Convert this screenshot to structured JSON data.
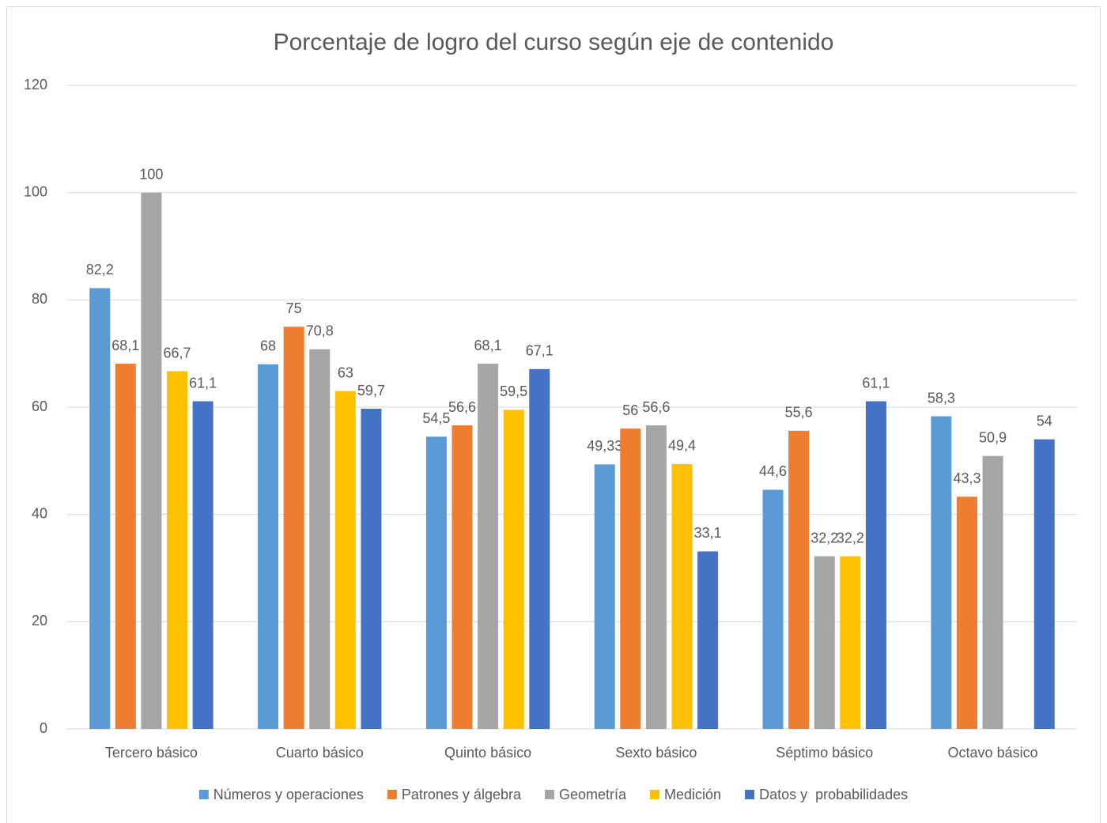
{
  "chart_data": {
    "type": "bar",
    "title": "Porcentaje de logro del curso según eje de contenido",
    "categories": [
      "Tercero básico",
      "Cuarto básico",
      "Quinto básico",
      "Sexto básico",
      "Séptimo básico",
      "Octavo básico"
    ],
    "series": [
      {
        "name": "Números y operaciones",
        "color": "#5b9bd5",
        "values": [
          82.2,
          68,
          54.5,
          49.33,
          44.6,
          58.3
        ],
        "value_labels": [
          "82,2",
          "68",
          "54,5",
          "49,33",
          "44,6",
          "58,3"
        ]
      },
      {
        "name": "Patrones y álgebra",
        "color": "#ed7d31",
        "values": [
          68.1,
          75,
          56.6,
          56,
          55.6,
          43.3
        ],
        "value_labels": [
          "68,1",
          "75",
          "56,6",
          "56",
          "55,6",
          "43,3"
        ]
      },
      {
        "name": "Geometría",
        "color": "#a5a5a5",
        "values": [
          100,
          70.8,
          68.1,
          56.6,
          32.2,
          50.9
        ],
        "value_labels": [
          "100",
          "70,8",
          "68,1",
          "56,6",
          "32,2",
          "50,9"
        ]
      },
      {
        "name": "Medición",
        "color": "#ffc000",
        "values": [
          66.7,
          63,
          59.5,
          49.4,
          32.2,
          null
        ],
        "value_labels": [
          "66,7",
          "63",
          "59,5",
          "49,4",
          "32,2",
          null
        ]
      },
      {
        "name": "Datos y  probabilidades",
        "color": "#4472c4",
        "values": [
          61.1,
          59.7,
          67.1,
          33.1,
          61.1,
          54
        ],
        "value_labels": [
          "61,1",
          "59,7",
          "67,1",
          "33,1",
          "61,1",
          "54"
        ]
      }
    ],
    "ylim": [
      0,
      120
    ],
    "yticks": [
      0,
      20,
      40,
      60,
      80,
      100,
      120
    ],
    "grid": true,
    "legend": "bottom"
  }
}
